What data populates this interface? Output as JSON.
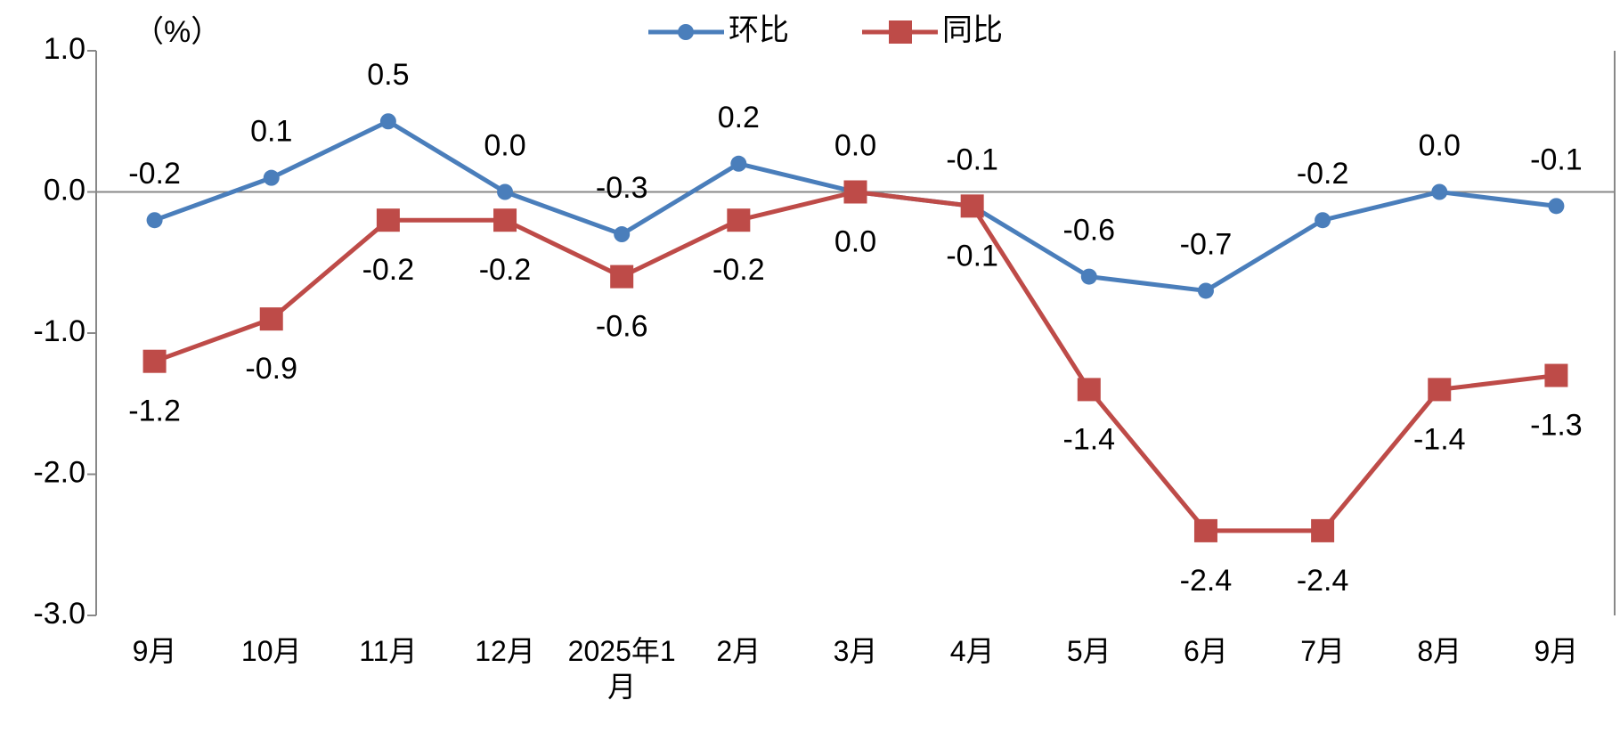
{
  "chart_data": {
    "type": "line",
    "y_unit": "（%）",
    "categories": [
      "9月",
      "10月",
      "11月",
      "12月",
      "2025年1月",
      "2月",
      "3月",
      "4月",
      "5月",
      "6月",
      "7月",
      "8月",
      "9月"
    ],
    "series": [
      {
        "name": "环比",
        "color": "#4a7ebb",
        "marker": "circle",
        "label_position": "above",
        "values": [
          -0.2,
          0.1,
          0.5,
          0.0,
          -0.3,
          0.2,
          0.0,
          -0.1,
          -0.6,
          -0.7,
          -0.2,
          0.0,
          -0.1
        ],
        "value_labels": [
          "-0.2",
          "0.1",
          "0.5",
          "0.0",
          "-0.3",
          "0.2",
          "0.0",
          "-0.1",
          "-0.6",
          "-0.7",
          "-0.2",
          "0.0",
          "-0.1"
        ]
      },
      {
        "name": "同比",
        "color": "#be4b48",
        "marker": "square",
        "label_position": "below",
        "values": [
          -1.2,
          -0.9,
          -0.2,
          -0.2,
          -0.6,
          -0.2,
          0.0,
          -0.1,
          -1.4,
          -2.4,
          -2.4,
          -1.4,
          -1.3
        ],
        "value_labels": [
          "-1.2",
          "-0.9",
          "-0.2",
          "-0.2",
          "-0.6",
          "-0.2",
          "0.0",
          "-0.1",
          "-1.4",
          "-2.4",
          "-2.4",
          "-1.4",
          "-1.3"
        ]
      }
    ],
    "ylim": [
      -3,
      1
    ],
    "yticks": [
      {
        "value": 1,
        "label": "1.0"
      },
      {
        "value": 0,
        "label": "0.0"
      },
      {
        "value": -1,
        "label": "-1.0"
      },
      {
        "value": -2,
        "label": "-2.0"
      },
      {
        "value": -3,
        "label": "-3.0"
      }
    ]
  }
}
